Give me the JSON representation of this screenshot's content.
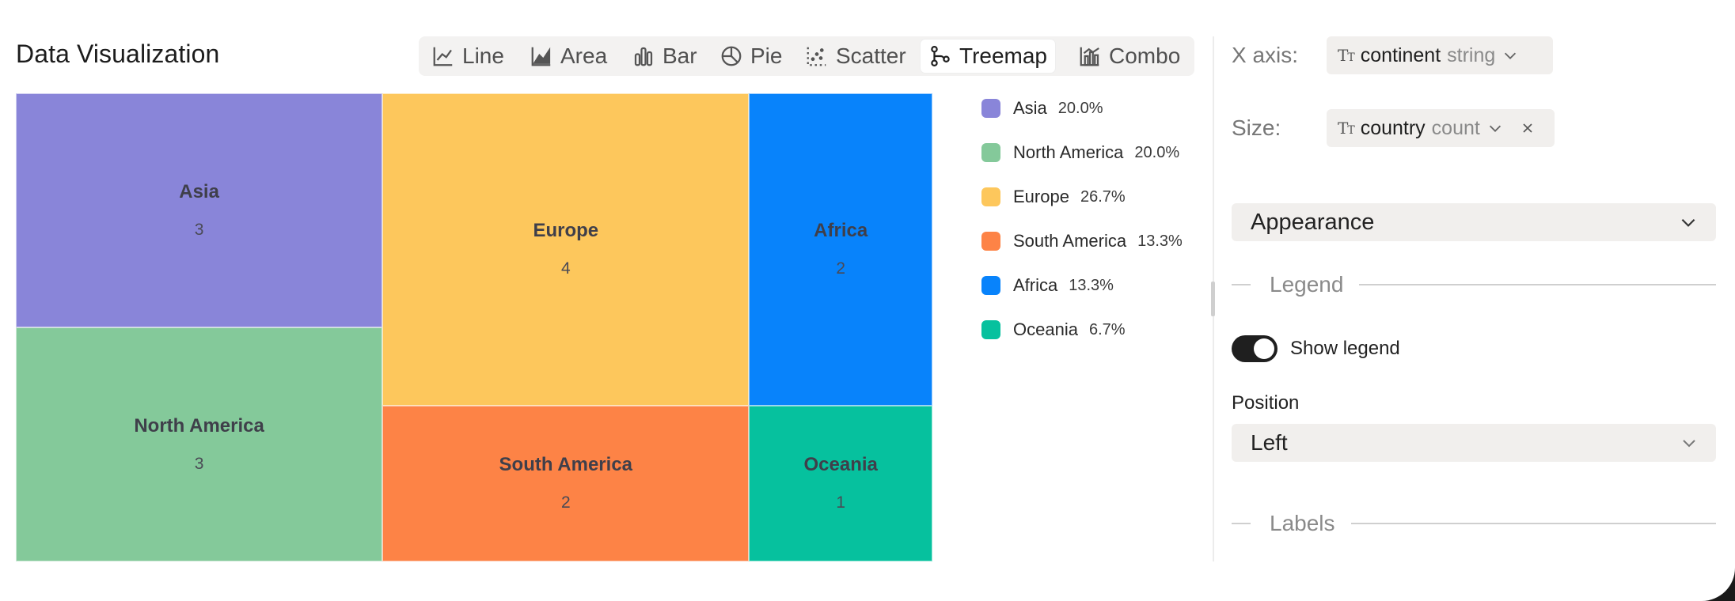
{
  "title": "Data Visualization",
  "chart_types": [
    {
      "label": "Line",
      "icon": "line-chart-icon",
      "active": false
    },
    {
      "label": "Area",
      "icon": "area-chart-icon",
      "active": false
    },
    {
      "label": "Bar",
      "icon": "bar-chart-icon",
      "active": false
    },
    {
      "label": "Pie",
      "icon": "pie-chart-icon",
      "active": false
    },
    {
      "label": "Scatter",
      "icon": "scatter-chart-icon",
      "active": false
    },
    {
      "label": "Treemap",
      "icon": "treemap-chart-icon",
      "active": true
    },
    {
      "label": "Combo",
      "icon": "combo-chart-icon",
      "active": false
    }
  ],
  "chart_data": {
    "type": "treemap",
    "categories": [
      "Asia",
      "North America",
      "Europe",
      "South America",
      "Africa",
      "Oceania"
    ],
    "values": [
      3,
      3,
      4,
      2,
      2,
      1
    ],
    "colors": [
      "#8985d9",
      "#84c99a",
      "#fdc75c",
      "#fd8346",
      "#0883fb",
      "#06c19e"
    ],
    "legend": {
      "position": "left",
      "items": [
        {
          "name": "Asia",
          "percent": "20.0%",
          "color": "#8985d9"
        },
        {
          "name": "North America",
          "percent": "20.0%",
          "color": "#84c99a"
        },
        {
          "name": "Europe",
          "percent": "26.7%",
          "color": "#fdc75c"
        },
        {
          "name": "South America",
          "percent": "13.3%",
          "color": "#fd8346"
        },
        {
          "name": "Africa",
          "percent": "13.3%",
          "color": "#0883fb"
        },
        {
          "name": "Oceania",
          "percent": "6.7%",
          "color": "#06c19e"
        }
      ]
    }
  },
  "panel": {
    "x_axis": {
      "label": "X axis:",
      "type_icon": "text-type-icon",
      "field": "continent",
      "field_type": "string"
    },
    "size": {
      "label": "Size:",
      "type_icon": "text-type-icon",
      "field": "country",
      "aggregation": "count"
    },
    "appearance_label": "Appearance",
    "legend_section": "Legend",
    "show_legend_label": "Show legend",
    "show_legend_on": true,
    "position_label": "Position",
    "position_value": "Left",
    "labels_section": "Labels"
  }
}
